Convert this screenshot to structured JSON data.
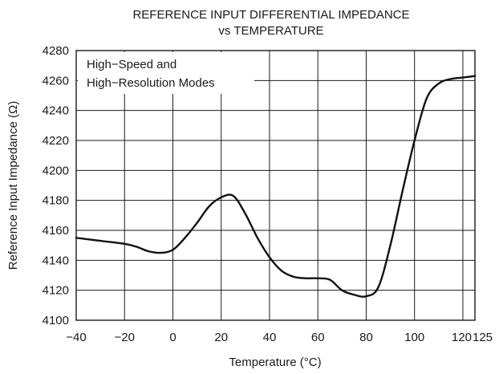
{
  "chart_data": {
    "type": "line",
    "title": [
      "REFERENCE INPUT DIFFERENTIAL IMPEDANCE",
      "vs TEMPERATURE"
    ],
    "xlabel": "Temperature (°C)",
    "ylabel": "Reference Input Impedance (Ω)",
    "xlim": [
      -40,
      125
    ],
    "ylim": [
      4100,
      4280
    ],
    "x_ticks": [
      -40,
      -20,
      0,
      20,
      40,
      60,
      80,
      100,
      120,
      125
    ],
    "x_tick_labels": [
      "−40",
      "−20",
      "0",
      "20",
      "40",
      "60",
      "80",
      "100",
      "120",
      "125"
    ],
    "y_ticks": [
      4100,
      4120,
      4140,
      4160,
      4180,
      4200,
      4220,
      4240,
      4260,
      4280
    ],
    "y_tick_labels": [
      "4100",
      "4120",
      "4140",
      "4160",
      "4180",
      "4200",
      "4220",
      "4240",
      "4260",
      "4280"
    ],
    "grid": true,
    "legend": [
      "High−Speed and",
      "High−Resolution Modes"
    ],
    "series": [
      {
        "x": [
          -40,
          -30,
          -20,
          -15,
          -10,
          -5,
          0,
          5,
          10,
          15,
          20,
          25,
          30,
          35,
          40,
          45,
          50,
          55,
          60,
          65,
          70,
          75,
          80,
          85,
          90,
          95,
          100,
          105,
          110,
          115,
          120,
          125
        ],
        "y": [
          4155,
          4153,
          4151,
          4149,
          4146,
          4145,
          4147,
          4155,
          4165,
          4176,
          4182,
          4183,
          4171,
          4155,
          4142,
          4133,
          4129,
          4128,
          4128,
          4127,
          4120,
          4117,
          4116,
          4122,
          4150,
          4186,
          4220,
          4248,
          4258,
          4261,
          4262,
          4263
        ]
      }
    ]
  }
}
